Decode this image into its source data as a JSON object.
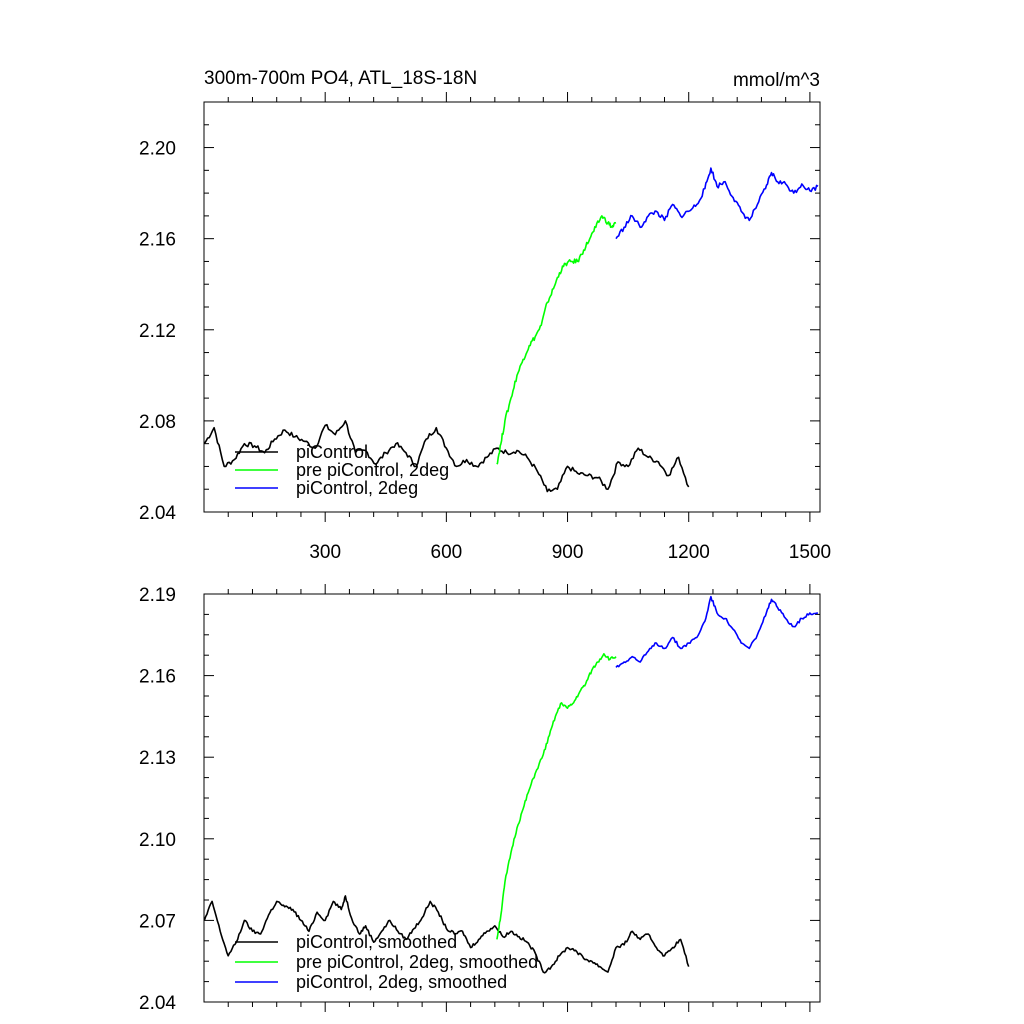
{
  "chart_data": [
    {
      "type": "line",
      "title": "300m-700m PO4, ATL_18S-18N",
      "units": "mmol/m^3",
      "xlim": [
        0,
        1525
      ],
      "ylim": [
        2.04,
        2.22
      ],
      "x_ticks": [
        300,
        600,
        900,
        1200,
        1500
      ],
      "y_ticks": [
        2.04,
        2.08,
        2.12,
        2.16,
        2.2
      ],
      "y_tick_labels": [
        "2.04",
        "2.08",
        "2.12",
        "2.16",
        "2.20"
      ],
      "x_tick_labels": [
        "300",
        "600",
        "900",
        "1200",
        "1500"
      ],
      "grid": false,
      "legend_position": "bottom-left",
      "series": [
        {
          "name": "piControl",
          "color": "#000000",
          "x_start": 1,
          "x_end": 1200,
          "points": [
            [
              1,
              2.07
            ],
            [
              25,
              2.077
            ],
            [
              50,
              2.06
            ],
            [
              75,
              2.063
            ],
            [
              100,
              2.07
            ],
            [
              125,
              2.069
            ],
            [
              150,
              2.066
            ],
            [
              175,
              2.072
            ],
            [
              200,
              2.076
            ],
            [
              225,
              2.073
            ],
            [
              250,
              2.071
            ],
            [
              275,
              2.068
            ],
            [
              300,
              2.078
            ],
            [
              325,
              2.074
            ],
            [
              350,
              2.08
            ],
            [
              375,
              2.066
            ],
            [
              400,
              2.067
            ],
            [
              425,
              2.061
            ],
            [
              450,
              2.066
            ],
            [
              475,
              2.07
            ],
            [
              500,
              2.066
            ],
            [
              525,
              2.06
            ],
            [
              550,
              2.072
            ],
            [
              575,
              2.077
            ],
            [
              600,
              2.068
            ],
            [
              625,
              2.06
            ],
            [
              650,
              2.063
            ],
            [
              675,
              2.06
            ],
            [
              700,
              2.064
            ],
            [
              725,
              2.068
            ],
            [
              750,
              2.066
            ],
            [
              775,
              2.067
            ],
            [
              800,
              2.064
            ],
            [
              825,
              2.058
            ],
            [
              850,
              2.049
            ],
            [
              875,
              2.05
            ],
            [
              900,
              2.06
            ],
            [
              925,
              2.057
            ],
            [
              950,
              2.056
            ],
            [
              975,
              2.055
            ],
            [
              1000,
              2.05
            ],
            [
              1025,
              2.062
            ],
            [
              1050,
              2.06
            ],
            [
              1075,
              2.068
            ],
            [
              1100,
              2.064
            ],
            [
              1125,
              2.062
            ],
            [
              1150,
              2.056
            ],
            [
              1175,
              2.064
            ],
            [
              1200,
              2.051
            ]
          ]
        },
        {
          "name": "pre piControl, 2deg",
          "color": "#00ff00",
          "x_start": 725,
          "x_end": 1020,
          "points": [
            [
              725,
              2.061
            ],
            [
              735,
              2.07
            ],
            [
              745,
              2.08
            ],
            [
              760,
              2.09
            ],
            [
              775,
              2.1
            ],
            [
              790,
              2.107
            ],
            [
              805,
              2.113
            ],
            [
              820,
              2.117
            ],
            [
              835,
              2.122
            ],
            [
              850,
              2.132
            ],
            [
              865,
              2.138
            ],
            [
              880,
              2.145
            ],
            [
              895,
              2.149
            ],
            [
              910,
              2.15
            ],
            [
              925,
              2.15
            ],
            [
              940,
              2.155
            ],
            [
              955,
              2.16
            ],
            [
              970,
              2.165
            ],
            [
              985,
              2.17
            ],
            [
              1000,
              2.167
            ],
            [
              1010,
              2.165
            ],
            [
              1020,
              2.167
            ]
          ]
        },
        {
          "name": "piControl, 2deg",
          "color": "#0000ff",
          "x_start": 1020,
          "x_end": 1520,
          "points": [
            [
              1020,
              2.16
            ],
            [
              1040,
              2.165
            ],
            [
              1060,
              2.17
            ],
            [
              1080,
              2.165
            ],
            [
              1100,
              2.17
            ],
            [
              1120,
              2.172
            ],
            [
              1140,
              2.168
            ],
            [
              1160,
              2.175
            ],
            [
              1180,
              2.17
            ],
            [
              1200,
              2.172
            ],
            [
              1220,
              2.175
            ],
            [
              1240,
              2.182
            ],
            [
              1255,
              2.191
            ],
            [
              1270,
              2.183
            ],
            [
              1290,
              2.185
            ],
            [
              1310,
              2.178
            ],
            [
              1330,
              2.172
            ],
            [
              1350,
              2.168
            ],
            [
              1370,
              2.175
            ],
            [
              1390,
              2.182
            ],
            [
              1405,
              2.189
            ],
            [
              1420,
              2.185
            ],
            [
              1440,
              2.184
            ],
            [
              1460,
              2.18
            ],
            [
              1480,
              2.184
            ],
            [
              1500,
              2.181
            ],
            [
              1520,
              2.183
            ]
          ]
        }
      ]
    },
    {
      "type": "line",
      "title": "",
      "xlim": [
        0,
        1525
      ],
      "ylim": [
        2.04,
        2.19
      ],
      "x_ticks": [
        300,
        600,
        900,
        1200,
        1500
      ],
      "y_ticks": [
        2.04,
        2.07,
        2.1,
        2.13,
        2.16,
        2.19
      ],
      "y_tick_labels": [
        "2.04",
        "2.07",
        "2.10",
        "2.13",
        "2.16",
        "2.19"
      ],
      "x_tick_labels": [],
      "grid": false,
      "legend_position": "bottom-left",
      "series": [
        {
          "name": "piControl, smoothed",
          "color": "#000000",
          "points": [
            [
              1,
              2.07
            ],
            [
              20,
              2.077
            ],
            [
              40,
              2.066
            ],
            [
              60,
              2.057
            ],
            [
              80,
              2.062
            ],
            [
              100,
              2.07
            ],
            [
              120,
              2.066
            ],
            [
              140,
              2.065
            ],
            [
              160,
              2.072
            ],
            [
              180,
              2.077
            ],
            [
              200,
              2.075
            ],
            [
              220,
              2.074
            ],
            [
              240,
              2.07
            ],
            [
              260,
              2.066
            ],
            [
              280,
              2.073
            ],
            [
              300,
              2.07
            ],
            [
              320,
              2.077
            ],
            [
              340,
              2.074
            ],
            [
              350,
              2.079
            ],
            [
              365,
              2.071
            ],
            [
              385,
              2.065
            ],
            [
              400,
              2.068
            ],
            [
              420,
              2.062
            ],
            [
              440,
              2.066
            ],
            [
              460,
              2.07
            ],
            [
              480,
              2.066
            ],
            [
              500,
              2.063
            ],
            [
              520,
              2.067
            ],
            [
              540,
              2.071
            ],
            [
              560,
              2.077
            ],
            [
              580,
              2.073
            ],
            [
              600,
              2.067
            ],
            [
              620,
              2.065
            ],
            [
              640,
              2.066
            ],
            [
              660,
              2.06
            ],
            [
              680,
              2.063
            ],
            [
              700,
              2.066
            ],
            [
              720,
              2.068
            ],
            [
              740,
              2.064
            ],
            [
              760,
              2.066
            ],
            [
              780,
              2.064
            ],
            [
              800,
              2.062
            ],
            [
              820,
              2.058
            ],
            [
              840,
              2.051
            ],
            [
              860,
              2.053
            ],
            [
              880,
              2.057
            ],
            [
              900,
              2.06
            ],
            [
              920,
              2.059
            ],
            [
              940,
              2.056
            ],
            [
              960,
              2.055
            ],
            [
              980,
              2.053
            ],
            [
              1000,
              2.051
            ],
            [
              1020,
              2.06
            ],
            [
              1040,
              2.061
            ],
            [
              1060,
              2.066
            ],
            [
              1080,
              2.063
            ],
            [
              1100,
              2.065
            ],
            [
              1120,
              2.06
            ],
            [
              1140,
              2.057
            ],
            [
              1160,
              2.06
            ],
            [
              1180,
              2.063
            ],
            [
              1200,
              2.053
            ]
          ]
        },
        {
          "name": "pre piControl, 2deg, smoothed",
          "color": "#00ff00",
          "points": [
            [
              725,
              2.063
            ],
            [
              735,
              2.072
            ],
            [
              745,
              2.084
            ],
            [
              760,
              2.095
            ],
            [
              775,
              2.104
            ],
            [
              790,
              2.111
            ],
            [
              805,
              2.118
            ],
            [
              820,
              2.124
            ],
            [
              840,
              2.131
            ],
            [
              855,
              2.138
            ],
            [
              870,
              2.145
            ],
            [
              885,
              2.15
            ],
            [
              900,
              2.148
            ],
            [
              915,
              2.15
            ],
            [
              930,
              2.154
            ],
            [
              945,
              2.157
            ],
            [
              960,
              2.162
            ],
            [
              975,
              2.165
            ],
            [
              990,
              2.168
            ],
            [
              1005,
              2.166
            ],
            [
              1020,
              2.167
            ]
          ]
        },
        {
          "name": "piControl, 2deg, smoothed",
          "color": "#0000ff",
          "points": [
            [
              1020,
              2.163
            ],
            [
              1040,
              2.165
            ],
            [
              1060,
              2.167
            ],
            [
              1080,
              2.165
            ],
            [
              1100,
              2.169
            ],
            [
              1120,
              2.172
            ],
            [
              1140,
              2.17
            ],
            [
              1160,
              2.174
            ],
            [
              1180,
              2.17
            ],
            [
              1200,
              2.172
            ],
            [
              1220,
              2.174
            ],
            [
              1240,
              2.18
            ],
            [
              1255,
              2.189
            ],
            [
              1270,
              2.183
            ],
            [
              1290,
              2.181
            ],
            [
              1310,
              2.177
            ],
            [
              1330,
              2.172
            ],
            [
              1350,
              2.17
            ],
            [
              1370,
              2.175
            ],
            [
              1390,
              2.182
            ],
            [
              1405,
              2.188
            ],
            [
              1420,
              2.185
            ],
            [
              1440,
              2.181
            ],
            [
              1460,
              2.178
            ],
            [
              1480,
              2.181
            ],
            [
              1500,
              2.183
            ],
            [
              1520,
              2.183
            ]
          ]
        }
      ]
    }
  ]
}
